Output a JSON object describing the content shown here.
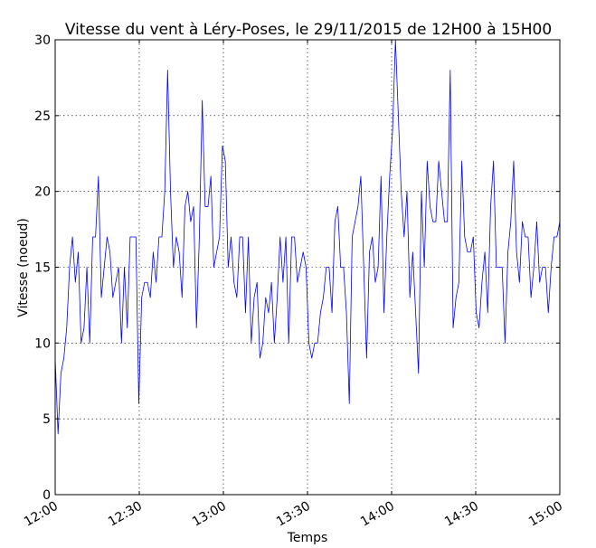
{
  "chart_data": {
    "type": "line",
    "title": "Vitesse du vent à Léry-Poses, le 29/11/2015 de 12H00 à 15H00",
    "xlabel": "Temps",
    "ylabel": "Vitesse (noeud)",
    "x_ticks": [
      "12:00",
      "12:30",
      "13:00",
      "13:30",
      "14:00",
      "14:30",
      "15:00"
    ],
    "y_ticks": [
      "0",
      "5",
      "10",
      "15",
      "20",
      "25",
      "30"
    ],
    "xlim": [
      "12:00",
      "15:00"
    ],
    "ylim": [
      0,
      30
    ],
    "grid": true,
    "line_color": "#0000ff",
    "series": [
      {
        "x_start": "12:00",
        "x_end": "15:00",
        "values": [
          9,
          4,
          8,
          9,
          11,
          15,
          17,
          14,
          16,
          10,
          11,
          15,
          10,
          17,
          17,
          21,
          13,
          15,
          17,
          16,
          13,
          14,
          15,
          10,
          15,
          11,
          17,
          17,
          17,
          6,
          13,
          14,
          14,
          13,
          16,
          14,
          17,
          17,
          20,
          28,
          20,
          15,
          17,
          16,
          13,
          19,
          20,
          18,
          19,
          11,
          17,
          26,
          19,
          19,
          21,
          15,
          16,
          17,
          23,
          22,
          15,
          17,
          14,
          13,
          17,
          17,
          12,
          17,
          10,
          13,
          14,
          9,
          10,
          13,
          12,
          14,
          10,
          13,
          17,
          14,
          17,
          10,
          17,
          17,
          14,
          15,
          16,
          15,
          10,
          9,
          10,
          10,
          12,
          13,
          15,
          15,
          12,
          18,
          19,
          15,
          15,
          12,
          6,
          17,
          18,
          19,
          21,
          15,
          9,
          16,
          17,
          14,
          15,
          21,
          12,
          17,
          21,
          24,
          30,
          25,
          20,
          17,
          20,
          13,
          16,
          12,
          8,
          20,
          15,
          22,
          19,
          18,
          18,
          22,
          20,
          18,
          18,
          28,
          11,
          13,
          14,
          22,
          17,
          16,
          16,
          17,
          12,
          11,
          14,
          16,
          12,
          19,
          22,
          15,
          15,
          15,
          10,
          16,
          18,
          22,
          16,
          14,
          18,
          17,
          17,
          13,
          15,
          18,
          14,
          15,
          15,
          12,
          15,
          17,
          17,
          18
        ]
      }
    ]
  }
}
